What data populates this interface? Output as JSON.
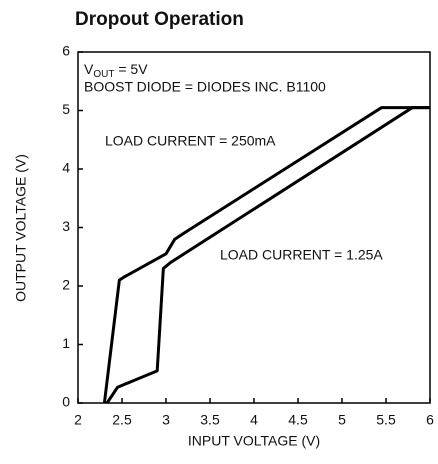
{
  "chart_data": {
    "type": "line",
    "title": "Dropout Operation",
    "x_label": "INPUT VOLTAGE (V)",
    "y_label": "OUTPUT VOLTAGE (V)",
    "xlim": [
      2,
      6
    ],
    "ylim": [
      0,
      6
    ],
    "xticks": [
      2,
      2.5,
      3,
      3.5,
      4,
      4.5,
      5,
      5.5,
      6
    ],
    "yticks": [
      0,
      1,
      2,
      3,
      4,
      5,
      6
    ],
    "grid": false,
    "annotations": [
      {
        "text": "V",
        "subscript": "OUT",
        "suffix": " = 5V"
      },
      "BOOST DIODE = DIODES INC. B1100"
    ],
    "series": [
      {
        "name": "LOAD CURRENT = 250mA",
        "color": "#000000",
        "x": [
          2.3,
          2.47,
          2.52,
          3.0,
          3.1,
          3.2,
          5.45,
          6.0
        ],
        "values": [
          0,
          2.1,
          2.15,
          2.55,
          2.8,
          2.9,
          5.05,
          5.05
        ]
      },
      {
        "name": "LOAD CURRENT = 1.25A",
        "color": "#000000",
        "x": [
          2.33,
          2.45,
          2.9,
          2.97,
          3.05,
          5.8,
          6.0
        ],
        "values": [
          0,
          0.27,
          0.55,
          2.3,
          2.4,
          5.05,
          5.05
        ]
      }
    ]
  }
}
